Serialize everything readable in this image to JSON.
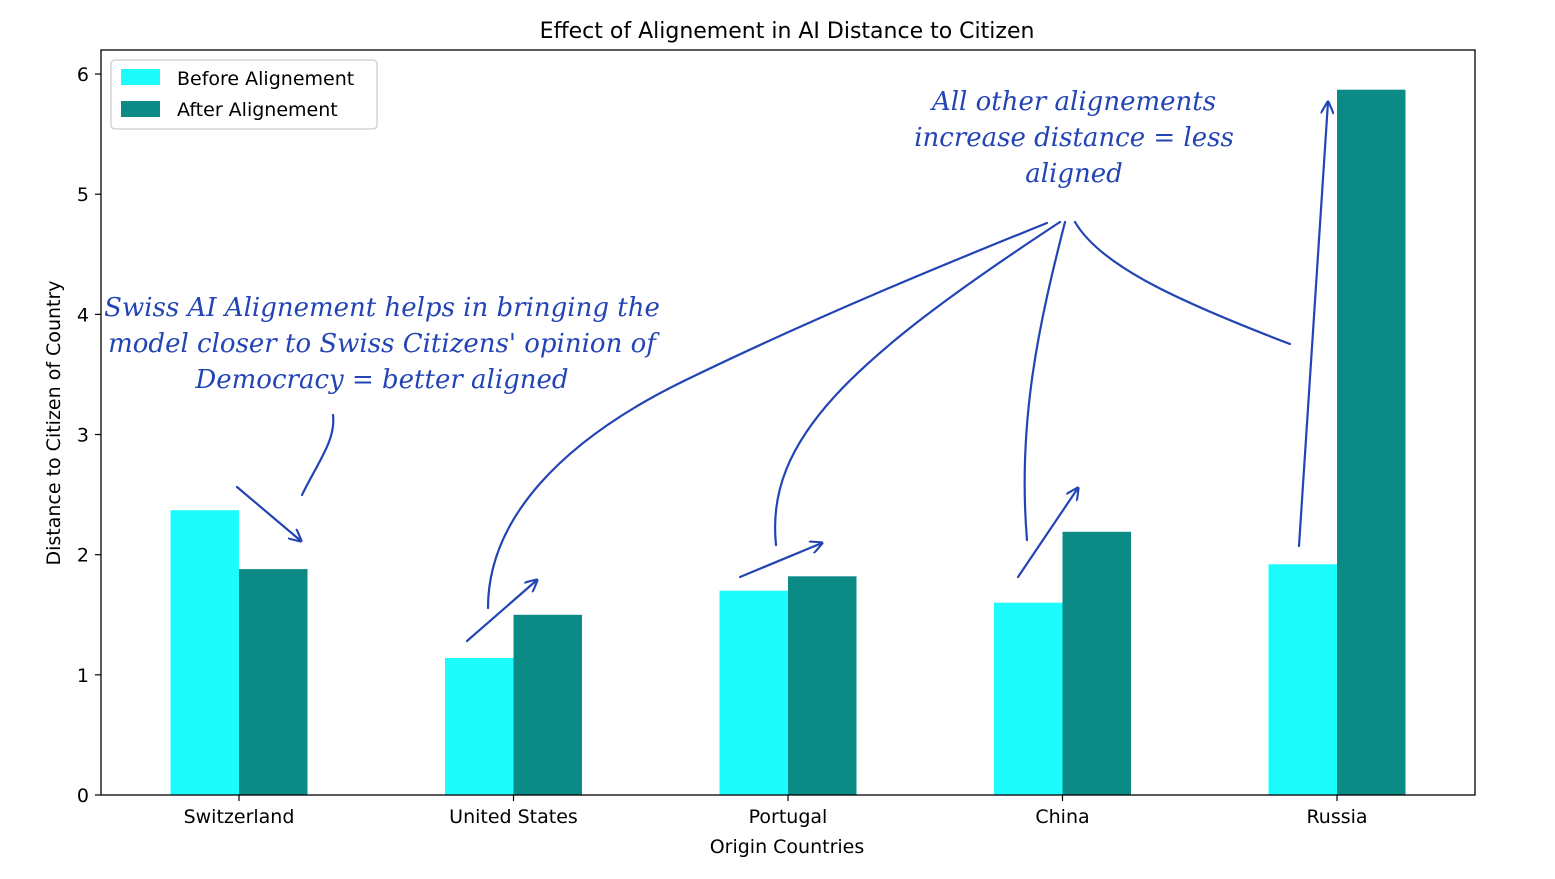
{
  "colors": {
    "before": "#1cfcfc",
    "after": "#0b8a86",
    "annotation": "#2344b5",
    "axis": "#000000"
  },
  "chart_data": {
    "type": "bar",
    "title": "Effect of Alignement in AI Distance to Citizen",
    "xlabel": "Origin Countries",
    "ylabel": "Distance to Citizen of Country",
    "categories": [
      "Switzerland",
      "United States",
      "Portugal",
      "China",
      "Russia"
    ],
    "series": [
      {
        "name": "Before Alignement",
        "values": [
          2.37,
          1.14,
          1.7,
          1.6,
          1.92
        ]
      },
      {
        "name": "After Alignement",
        "values": [
          1.88,
          1.5,
          1.82,
          2.19,
          5.87
        ]
      }
    ],
    "ylim": [
      0,
      6.2
    ],
    "yticks": [
      "0",
      "1",
      "2",
      "3",
      "4",
      "5",
      "6"
    ],
    "grid": false,
    "legend_position": "top-left",
    "annotations": [
      {
        "lines": [
          "Swiss AI Alignement helps in bringing the",
          "model closer to Swiss Citizens' opinion of",
          "Democracy = better aligned"
        ]
      },
      {
        "lines": [
          "All other alignements",
          "increase distance = less",
          "aligned"
        ]
      }
    ]
  }
}
